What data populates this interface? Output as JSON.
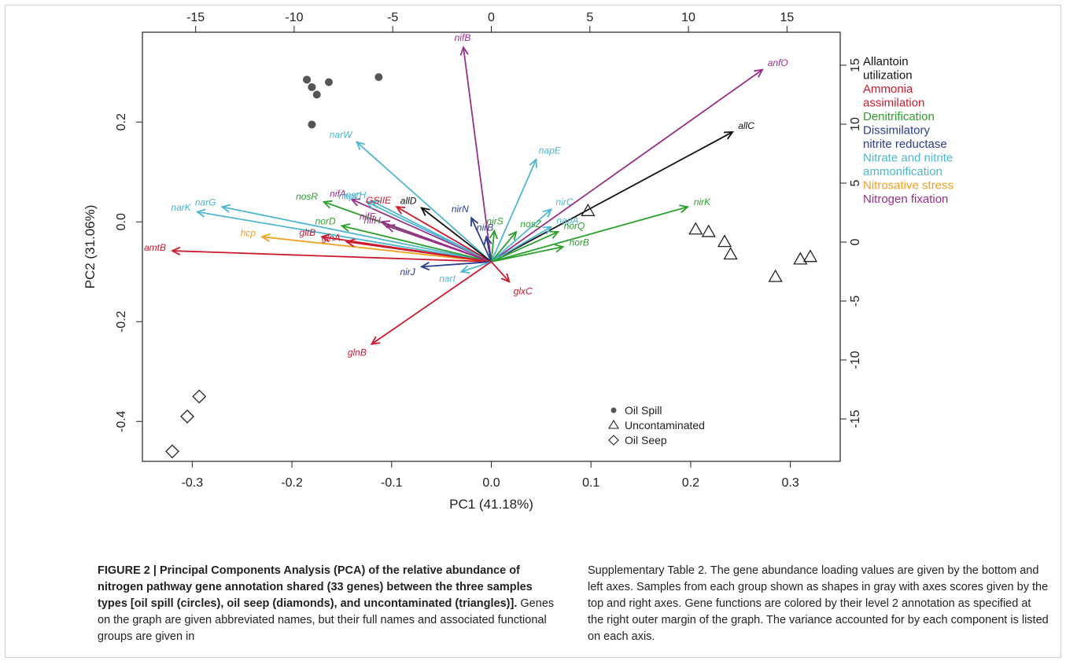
{
  "figure": {
    "caption": {
      "label": "FIGURE 2 | Principal Components Analysis (PCA) of the relative abundance of nitrogen pathway gene annotation shared (33 genes) between the three samples types [oil spill (circles), oil seep (diamonds), and uncontaminated (triangles)].",
      "body_left": "Genes on the graph are given abbreviated names, but their full names and associated functional groups are given in",
      "body_right": "Supplementary Table 2. The gene abundance loading values are given by the bottom and left axes. Samples from each group shown as shapes in gray with axes scores given by the top and right axes. Gene functions are colored by their level 2 annotation as specified at the right outer margin of the graph. The variance accounted for by each component is listed on each axis."
    }
  },
  "chart_data": {
    "type": "scatter",
    "subtype": "pca-biplot",
    "xlabel": "PC1 (41.18%)",
    "ylabel": "PC2 (31.06%)",
    "bottom_axis": {
      "range": [
        -0.35,
        0.35
      ],
      "ticks": [
        -0.3,
        -0.2,
        -0.1,
        0.0,
        0.1,
        0.2,
        0.3
      ],
      "tick_labels": [
        "-0.3",
        "-0.2",
        "-0.1",
        "0.0",
        "0.1",
        "0.2",
        "0.3"
      ]
    },
    "left_axis": {
      "range": [
        -0.48,
        0.38
      ],
      "ticks": [
        -0.4,
        -0.2,
        0.0,
        0.2
      ],
      "tick_labels": [
        "-0.4",
        "-0.2",
        "0.0",
        "0.2"
      ]
    },
    "top_axis": {
      "range": [
        -17.7,
        17.7
      ],
      "ticks": [
        -15,
        -10,
        -5,
        0,
        5,
        10,
        15
      ],
      "tick_labels": [
        "-15",
        "-10",
        "-5",
        "0",
        "5",
        "10",
        "15"
      ]
    },
    "right_axis": {
      "range": [
        -18.6,
        17.8
      ],
      "ticks": [
        -15,
        -10,
        -5,
        0,
        5,
        10,
        15
      ],
      "tick_labels": [
        "-15",
        "-10",
        "-5",
        "0",
        "5",
        "10",
        "15"
      ]
    },
    "origin": [
      0.0,
      -0.08
    ],
    "colors": {
      "Allantoin utilization": "#111111",
      "Ammonia assimilation": "#cc1b2e",
      "Denitrification": "#2ca02c",
      "Dissimilatory nitrite reductase": "#2a3d8f",
      "Nitrate and nitrite ammonification": "#4fb6cf",
      "Nitrosative stress": "#f0a020",
      "Nitrogen fixation": "#9a2f8a"
    },
    "legend_groups": [
      {
        "lines": [
          "Allantoin",
          "utilization"
        ],
        "color": "#111111"
      },
      {
        "lines": [
          "Ammonia",
          "assimilation"
        ],
        "color": "#cc1b2e"
      },
      {
        "lines": [
          "Denitrification"
        ],
        "color": "#2ca02c"
      },
      {
        "lines": [
          "Dissimilatory",
          "nitrite reductase"
        ],
        "color": "#2a3d8f"
      },
      {
        "lines": [
          "Nitrate and nitrite",
          "ammonification"
        ],
        "color": "#4fb6cf"
      },
      {
        "lines": [
          "Nitrosative stress"
        ],
        "color": "#f0a020"
      },
      {
        "lines": [
          "Nitrogen fixation"
        ],
        "color": "#9a2f8a"
      }
    ],
    "loadings": [
      {
        "gene": "nifB",
        "x": -0.028,
        "y": 0.35,
        "color": "#9a2f8a"
      },
      {
        "gene": "anfO",
        "x": 0.272,
        "y": 0.305,
        "color": "#9a2f8a"
      },
      {
        "gene": "allC",
        "x": 0.242,
        "y": 0.18,
        "color": "#111111"
      },
      {
        "gene": "narW",
        "x": -0.135,
        "y": 0.16,
        "color": "#4fb6cf"
      },
      {
        "gene": "napE",
        "x": 0.045,
        "y": 0.125,
        "color": "#4fb6cf"
      },
      {
        "gene": "narG",
        "x": -0.27,
        "y": 0.03,
        "color": "#4fb6cf"
      },
      {
        "gene": "narK",
        "x": -0.295,
        "y": 0.02,
        "color": "#4fb6cf"
      },
      {
        "gene": "nosR",
        "x": -0.168,
        "y": 0.04,
        "color": "#2ca02c"
      },
      {
        "gene": "nifA",
        "x": -0.14,
        "y": 0.045,
        "color": "#9a2f8a"
      },
      {
        "gene": "napC",
        "x": -0.125,
        "y": 0.04,
        "color": "#4fb6cf"
      },
      {
        "gene": "narH",
        "x": -0.12,
        "y": 0.042,
        "color": "#4fb6cf"
      },
      {
        "gene": "GSIIE",
        "x": -0.095,
        "y": 0.03,
        "color": "#cc1b2e"
      },
      {
        "gene": "allD",
        "x": -0.07,
        "y": 0.028,
        "color": "#111111"
      },
      {
        "gene": "nirN",
        "x": -0.02,
        "y": 0.008,
        "color": "#2a3d8f"
      },
      {
        "gene": "nirC",
        "x": 0.06,
        "y": 0.025,
        "color": "#4fb6cf"
      },
      {
        "gene": "nirK",
        "x": 0.197,
        "y": 0.03,
        "color": "#2ca02c"
      },
      {
        "gene": "norD",
        "x": -0.15,
        "y": -0.008,
        "color": "#2ca02c"
      },
      {
        "gene": "nifE",
        "x": -0.11,
        "y": 0.0,
        "color": "#9a2f8a"
      },
      {
        "gene": "nifH",
        "x": -0.105,
        "y": -0.008,
        "color": "#9a2f8a"
      },
      {
        "gene": "nirS",
        "x": 0.003,
        "y": -0.018,
        "color": "#2ca02c"
      },
      {
        "gene": "nirB",
        "x": -0.005,
        "y": -0.03,
        "color": "#2a3d8f"
      },
      {
        "gene": "nosZ",
        "x": 0.025,
        "y": -0.02,
        "color": "#2ca02c"
      },
      {
        "gene": "napA",
        "x": 0.06,
        "y": -0.01,
        "color": "#4fb6cf"
      },
      {
        "gene": "norQ",
        "x": 0.067,
        "y": -0.02,
        "color": "#2ca02c"
      },
      {
        "gene": "norB",
        "x": 0.072,
        "y": -0.05,
        "color": "#2ca02c"
      },
      {
        "gene": "hcp",
        "x": -0.23,
        "y": -0.03,
        "color": "#f0a020"
      },
      {
        "gene": "gltB",
        "x": -0.17,
        "y": -0.03,
        "color": "#cc1b2e"
      },
      {
        "gene": "glnA",
        "x": -0.145,
        "y": -0.04,
        "color": "#cc1b2e"
      },
      {
        "gene": "amtB",
        "x": -0.32,
        "y": -0.058,
        "color": "#cc1b2e"
      },
      {
        "gene": "nirJ",
        "x": -0.07,
        "y": -0.09,
        "color": "#2a3d8f"
      },
      {
        "gene": "narI",
        "x": -0.03,
        "y": -0.1,
        "color": "#4fb6cf"
      },
      {
        "gene": "glxC",
        "x": 0.018,
        "y": -0.12,
        "color": "#cc1b2e"
      },
      {
        "gene": "glnB",
        "x": -0.12,
        "y": -0.245,
        "color": "#cc1b2e"
      }
    ],
    "samples": {
      "Oil Spill": {
        "marker": "circle",
        "points": [
          [
            -0.185,
            0.285
          ],
          [
            -0.18,
            0.27
          ],
          [
            -0.175,
            0.255
          ],
          [
            -0.163,
            0.28
          ],
          [
            -0.113,
            0.29
          ],
          [
            -0.18,
            0.195
          ]
        ]
      },
      "Uncontaminated": {
        "marker": "triangle",
        "points": [
          [
            0.097,
            0.022
          ],
          [
            0.205,
            -0.015
          ],
          [
            0.218,
            -0.02
          ],
          [
            0.234,
            -0.04
          ],
          [
            0.24,
            -0.065
          ],
          [
            0.285,
            -0.11
          ],
          [
            0.31,
            -0.075
          ],
          [
            0.32,
            -0.07
          ]
        ]
      },
      "Oil Seep": {
        "marker": "diamond",
        "points": [
          [
            -0.293,
            -0.35
          ],
          [
            -0.305,
            -0.39
          ],
          [
            -0.32,
            -0.46
          ]
        ]
      }
    },
    "sample_legend": [
      {
        "label": "Oil Spill",
        "marker": "circle"
      },
      {
        "label": "Uncontaminated",
        "marker": "triangle"
      },
      {
        "label": "Oil Seep",
        "marker": "diamond"
      }
    ],
    "legend_position": "right-outer",
    "sample_legend_position": "bottom-right",
    "grid": false
  }
}
